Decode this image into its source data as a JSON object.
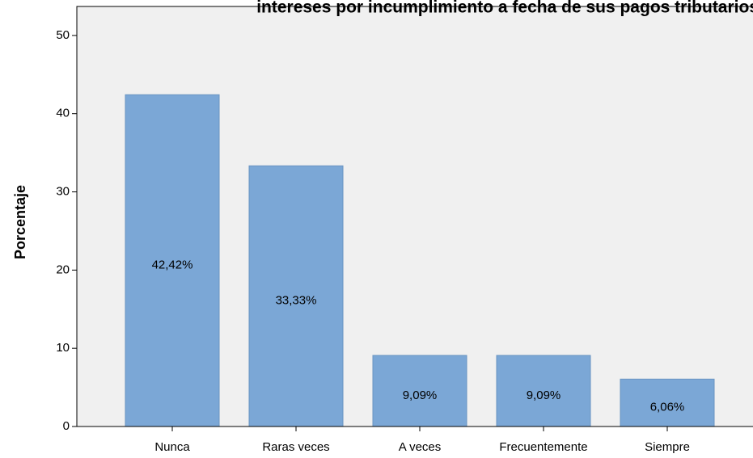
{
  "chart_data": {
    "type": "bar",
    "title": "intereses por incumplimiento a fecha de sus pagos tributarios",
    "y_label": "Porcentaje",
    "categories": [
      "Nunca",
      "Raras veces",
      "A veces",
      "Frecuentemente",
      "Siempre"
    ],
    "values": [
      42.42,
      33.33,
      9.09,
      9.09,
      6.06
    ],
    "value_labels": [
      "42,42%",
      "33,33%",
      "9,09%",
      "9,09%",
      "6,06%"
    ],
    "color": "#7ba7d6",
    "ylim": [
      0,
      53.5
    ],
    "yticks": [
      0,
      10,
      20,
      30,
      40,
      50
    ],
    "grid": false
  }
}
